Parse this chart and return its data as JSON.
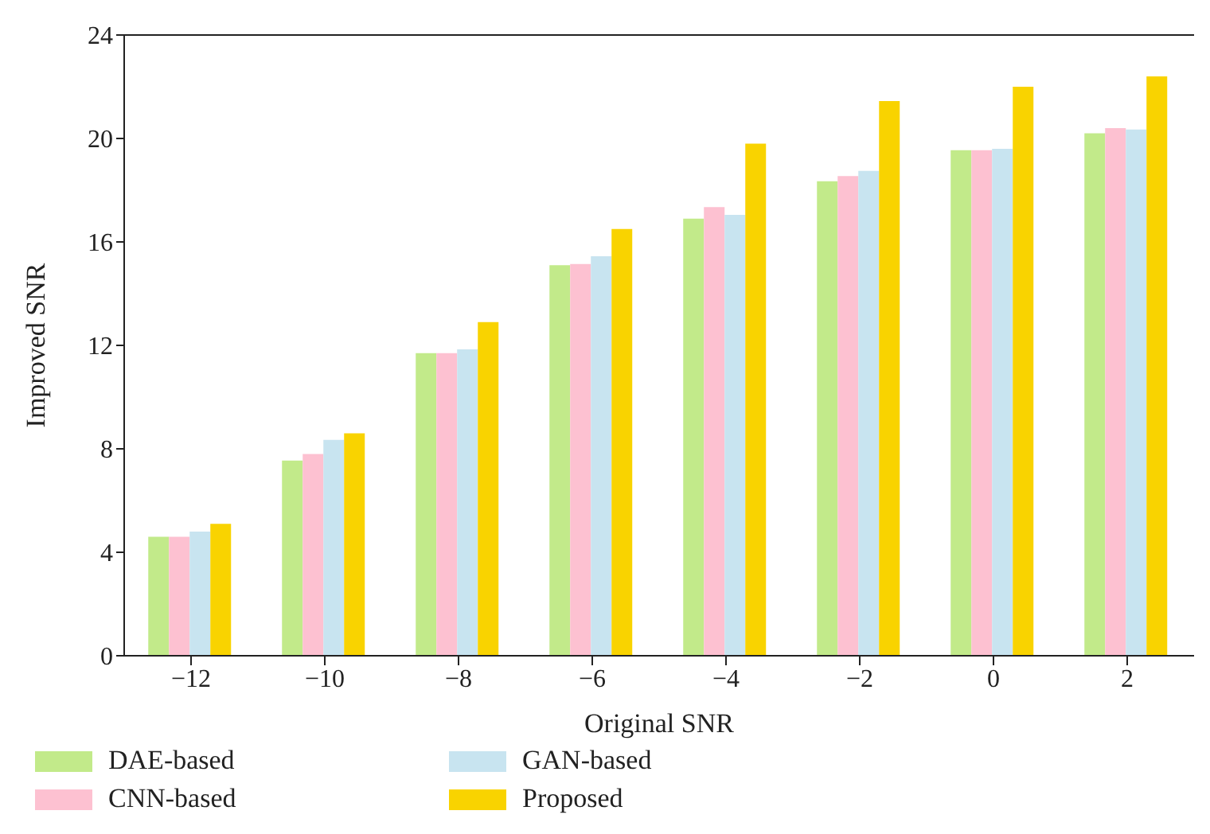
{
  "chart_data": {
    "type": "bar",
    "xlabel": "Original SNR",
    "ylabel": "Improved SNR",
    "categories": [
      "−12",
      "−10",
      "−8",
      "−6",
      "−4",
      "−2",
      "0",
      "2"
    ],
    "series": [
      {
        "name": "DAE-based",
        "color": "#c2ea8a",
        "values": [
          4.6,
          7.55,
          11.7,
          15.1,
          16.9,
          18.35,
          19.55,
          20.2
        ]
      },
      {
        "name": "CNN-based",
        "color": "#fdc1d1",
        "values": [
          4.6,
          7.8,
          11.7,
          15.15,
          17.35,
          18.55,
          19.55,
          20.4
        ]
      },
      {
        "name": "GAN-based",
        "color": "#c8e4f0",
        "values": [
          4.8,
          8.35,
          11.85,
          15.45,
          17.05,
          18.75,
          19.6,
          20.35
        ]
      },
      {
        "name": "Proposed",
        "color": "#f9d300",
        "values": [
          5.1,
          8.6,
          12.9,
          16.5,
          19.8,
          21.45,
          22.0,
          22.4
        ]
      }
    ],
    "ylim": [
      0,
      24
    ],
    "yticks": [
      0,
      4,
      8,
      12,
      16,
      20,
      24
    ],
    "grid": false,
    "legend": "bottom"
  }
}
